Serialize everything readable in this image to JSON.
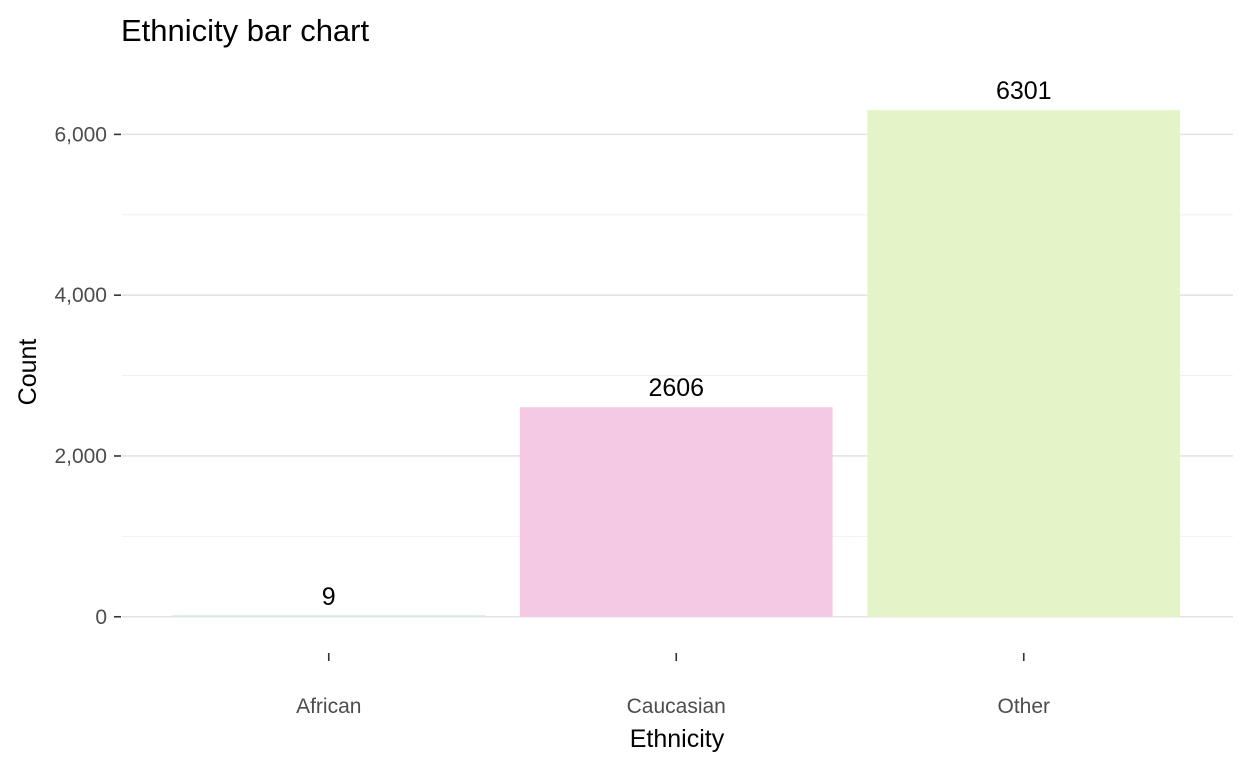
{
  "chart_data": {
    "type": "bar",
    "title": "Ethnicity bar chart",
    "xlabel": "Ethnicity",
    "ylabel": "Count",
    "categories": [
      "African",
      "Caucasian",
      "Other"
    ],
    "values": [
      9,
      2606,
      6301
    ],
    "data_labels": [
      "9",
      "2606",
      "6301"
    ],
    "colors": [
      "#d3e9e0",
      "#f3c9e4",
      "#e4f4c8"
    ],
    "ylim": [
      -600,
      6950
    ],
    "y_ticks": [
      0,
      2000,
      4000,
      6000
    ],
    "y_tick_labels": [
      "0",
      "2,000",
      "4,000",
      "6,000"
    ],
    "y_minor_ticks": [
      1000,
      3000,
      5000
    ],
    "grid": true,
    "legend": "none"
  }
}
